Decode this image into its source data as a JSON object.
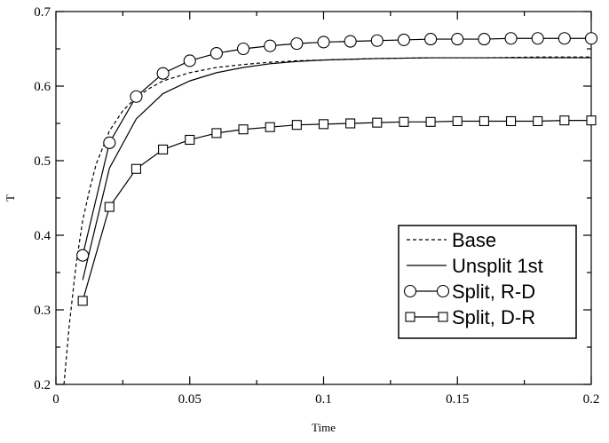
{
  "chart_data": {
    "type": "line",
    "xlabel": "Time",
    "ylabel": "T",
    "xlim": [
      0,
      0.2
    ],
    "ylim": [
      0.2,
      0.7
    ],
    "xticks": [
      0,
      0.05,
      0.1,
      0.15,
      0.2
    ],
    "xtick_labels": [
      "0",
      "0.05",
      "0.1",
      "0.15",
      "0.2"
    ],
    "yticks": [
      0.2,
      0.3,
      0.4,
      0.5,
      0.6,
      0.7
    ],
    "ytick_labels": [
      "0.2",
      "0.3",
      "0.4",
      "0.5",
      "0.6",
      "0.7"
    ],
    "grid": false,
    "legend_position": "bottom-right",
    "series": [
      {
        "name": "Base",
        "style": "dashed",
        "marker": "none",
        "x": [
          0.003,
          0.005,
          0.0075,
          0.01,
          0.0125,
          0.015,
          0.02,
          0.025,
          0.03,
          0.035,
          0.04,
          0.05,
          0.06,
          0.07,
          0.08,
          0.09,
          0.1,
          0.12,
          0.14,
          0.16,
          0.18,
          0.2
        ],
        "y": [
          0.2,
          0.28,
          0.36,
          0.42,
          0.46,
          0.495,
          0.54,
          0.567,
          0.585,
          0.597,
          0.607,
          0.618,
          0.625,
          0.629,
          0.632,
          0.634,
          0.635,
          0.637,
          0.638,
          0.638,
          0.639,
          0.639
        ]
      },
      {
        "name": "Unsplit 1st",
        "style": "solid",
        "marker": "none",
        "x": [
          0.01,
          0.02,
          0.03,
          0.04,
          0.05,
          0.06,
          0.07,
          0.08,
          0.09,
          0.1,
          0.12,
          0.14,
          0.16,
          0.18,
          0.2
        ],
        "y": [
          0.34,
          0.49,
          0.556,
          0.59,
          0.607,
          0.618,
          0.625,
          0.63,
          0.633,
          0.635,
          0.637,
          0.638,
          0.638,
          0.638,
          0.638
        ]
      },
      {
        "name": "Split, R-D",
        "style": "solid",
        "marker": "circle",
        "x": [
          0.01,
          0.02,
          0.03,
          0.04,
          0.05,
          0.06,
          0.07,
          0.08,
          0.09,
          0.1,
          0.11,
          0.12,
          0.13,
          0.14,
          0.15,
          0.16,
          0.17,
          0.18,
          0.19,
          0.2
        ],
        "y": [
          0.373,
          0.524,
          0.586,
          0.617,
          0.634,
          0.644,
          0.65,
          0.654,
          0.657,
          0.659,
          0.66,
          0.661,
          0.662,
          0.663,
          0.663,
          0.663,
          0.664,
          0.664,
          0.664,
          0.664
        ]
      },
      {
        "name": "Split, D-R",
        "style": "solid",
        "marker": "square",
        "x": [
          0.01,
          0.02,
          0.03,
          0.04,
          0.05,
          0.06,
          0.07,
          0.08,
          0.09,
          0.1,
          0.11,
          0.12,
          0.13,
          0.14,
          0.15,
          0.16,
          0.17,
          0.18,
          0.19,
          0.2
        ],
        "y": [
          0.312,
          0.438,
          0.489,
          0.515,
          0.528,
          0.537,
          0.542,
          0.545,
          0.548,
          0.549,
          0.55,
          0.551,
          0.552,
          0.552,
          0.553,
          0.553,
          0.553,
          0.553,
          0.554,
          0.554
        ]
      }
    ]
  }
}
